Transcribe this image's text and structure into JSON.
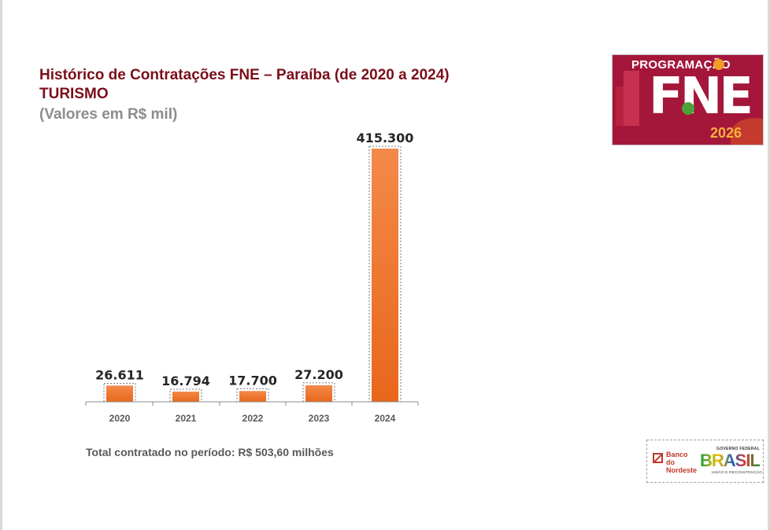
{
  "header": {
    "title": "Histórico de Contratações FNE – Paraíba (de 2020 a 2024)",
    "sector": "TURISMO",
    "units": "(Valores em R$ mil)"
  },
  "chart_data": {
    "type": "bar",
    "categories": [
      "2020",
      "2021",
      "2022",
      "2023",
      "2024"
    ],
    "values": [
      26611,
      16794,
      17700,
      27200,
      415300
    ],
    "data_labels": [
      "26.611",
      "16.794",
      "17.700",
      "27.200",
      "415.300"
    ],
    "title": "",
    "xlabel": "",
    "ylabel": "",
    "ylim": [
      0,
      415300
    ],
    "grid": false,
    "legend": "none",
    "bar_color": "#f07f2e"
  },
  "footer": {
    "total": "Total contratado no período: R$ 503,60 milhões"
  },
  "brand": {
    "top": "PROGRAMAÇÃO",
    "big": "FNE",
    "year": "2026",
    "bg_color": "#a4173a",
    "accent_color": "#f7b03c"
  },
  "logos": {
    "bank": "Banco do Nordeste",
    "gov_top": "GOVERNO FEDERAL",
    "gov_name": "BRASIL",
    "gov_sub": "UNIÃO E RECONSTRUÇÃO"
  }
}
